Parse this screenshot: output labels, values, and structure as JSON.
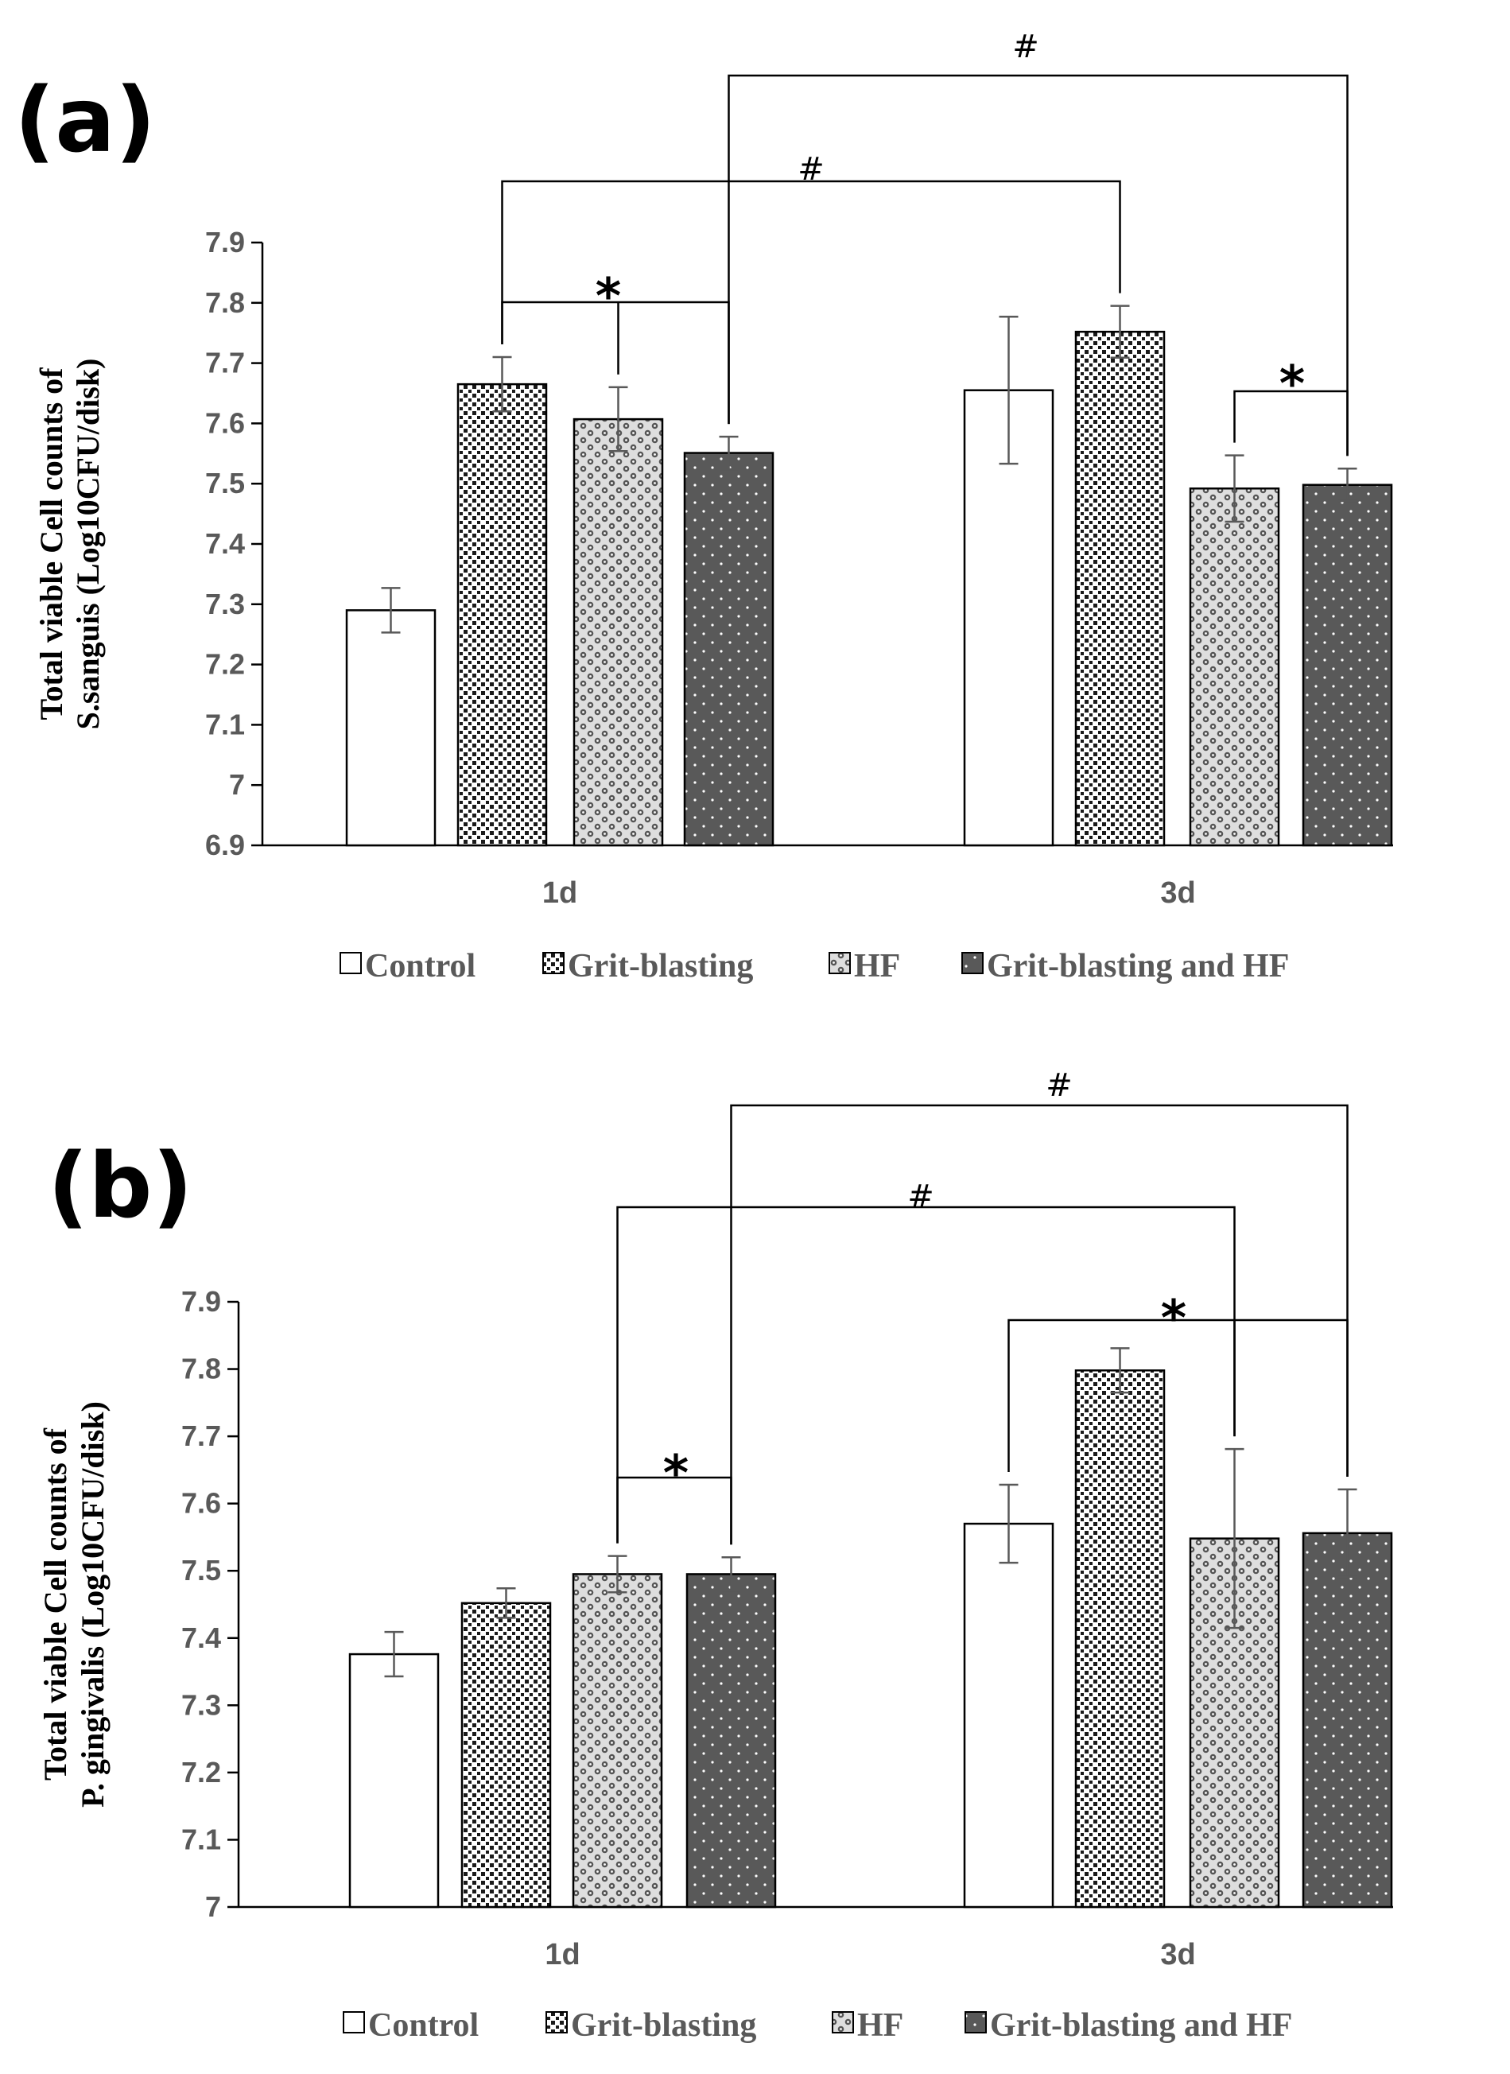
{
  "chart_data": [
    {
      "type": "bar",
      "panel_label": "(a)",
      "ylabel_line1": "Total viable Cell counts of",
      "ylabel_line2": "S.sanguis (Log10CFU/disk)",
      "categories": [
        "1d",
        "3d"
      ],
      "ylim": [
        6.9,
        7.9
      ],
      "yticks": [
        "6.9",
        "7",
        "7.1",
        "7.2",
        "7.3",
        "7.4",
        "7.5",
        "7.6",
        "7.7",
        "7.8",
        "7.9"
      ],
      "series": [
        {
          "name": "Control",
          "values": [
            7.29,
            7.655
          ],
          "errors": [
            0.037,
            0.122
          ]
        },
        {
          "name": "Grit-blasting",
          "values": [
            7.665,
            7.752
          ],
          "errors": [
            0.045,
            0.043
          ]
        },
        {
          "name": "HF",
          "values": [
            7.607,
            7.492
          ],
          "errors": [
            0.053,
            0.055
          ]
        },
        {
          "name": "Grit-blasting and HF",
          "values": [
            7.551,
            7.498
          ],
          "errors": [
            0.027,
            0.027
          ]
        }
      ],
      "annotations": [
        {
          "symbol": "*",
          "note": "1d: Grit-blasting vs HF vs Grit-blasting and HF"
        },
        {
          "symbol": "*",
          "note": "3d: HF vs Grit-blasting and HF"
        },
        {
          "symbol": "#",
          "note": "Grit-blasting 1d vs Grit-blasting 3d"
        },
        {
          "symbol": "#",
          "note": "Grit-blasting and HF 1d vs Grit-blasting and HF 3d"
        }
      ]
    },
    {
      "type": "bar",
      "panel_label": "(b)",
      "ylabel_line1": "Total viable Cell counts of",
      "ylabel_line2": "P. gingivalis (Log10CFU/disk)",
      "categories": [
        "1d",
        "3d"
      ],
      "ylim": [
        7.0,
        7.9
      ],
      "yticks": [
        "7",
        "7.1",
        "7.2",
        "7.3",
        "7.4",
        "7.5",
        "7.6",
        "7.7",
        "7.8",
        "7.9"
      ],
      "series": [
        {
          "name": "Control",
          "values": [
            7.376,
            7.57
          ],
          "errors": [
            0.033,
            0.058
          ]
        },
        {
          "name": "Grit-blasting",
          "values": [
            7.452,
            7.798
          ],
          "errors": [
            0.022,
            0.033
          ]
        },
        {
          "name": "HF",
          "values": [
            7.495,
            7.548
          ],
          "errors": [
            0.027,
            0.133
          ]
        },
        {
          "name": "Grit-blasting and HF",
          "values": [
            7.495,
            7.556
          ],
          "errors": [
            0.025,
            0.065
          ]
        }
      ],
      "annotations": [
        {
          "symbol": "*",
          "note": "1d: HF vs Grit-blasting and HF"
        },
        {
          "symbol": "*",
          "note": "3d: Control vs HF vs Grit-blasting and HF"
        },
        {
          "symbol": "#",
          "note": "HF 1d vs HF 3d"
        },
        {
          "symbol": "#",
          "note": "Grit-blasting and HF 1d vs Grit-blasting and HF 3d"
        }
      ]
    }
  ],
  "legend": [
    "Control",
    "Grit-blasting",
    "HF",
    "Grit-blasting and HF"
  ],
  "sig_symbols": {
    "star": "*",
    "hash": "#"
  },
  "colors": {
    "axis": "#000000",
    "tick_text": "#595959",
    "dark_fill": "#595959",
    "white_fill": "#ffffff"
  }
}
